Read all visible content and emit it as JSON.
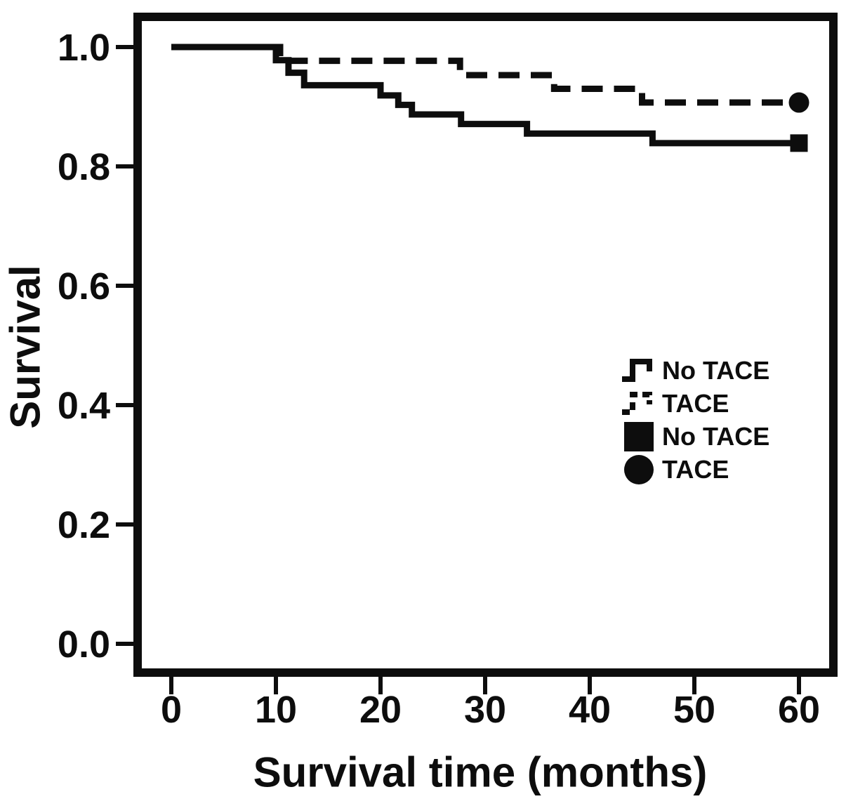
{
  "figure_title": "",
  "chart_data": {
    "type": "line",
    "subtype": "kaplan-meier-step",
    "title": "",
    "xlabel": "Survival time (months)",
    "ylabel": "Survival",
    "xlim": [
      0,
      60
    ],
    "ylim": [
      0.0,
      1.0
    ],
    "x_ticks": [
      "0",
      "10",
      "20",
      "30",
      "40",
      "50",
      "60"
    ],
    "y_ticks": [
      "0.0",
      "0.2",
      "0.4",
      "0.6",
      "0.8",
      "1.0"
    ],
    "grid": false,
    "line_color": "#0d0d0d",
    "series": [
      {
        "name": "No TACE",
        "style": "solid",
        "end_marker": "square",
        "points": [
          [
            0,
            1.0
          ],
          [
            10,
            0.978
          ],
          [
            11.2,
            0.957
          ],
          [
            12.7,
            0.936
          ],
          [
            20,
            0.919
          ],
          [
            21.7,
            0.903
          ],
          [
            23,
            0.887
          ],
          [
            27.7,
            0.871
          ],
          [
            34,
            0.855
          ],
          [
            46,
            0.839
          ],
          [
            60,
            0.839
          ]
        ]
      },
      {
        "name": "TACE",
        "style": "dashed",
        "end_marker": "circle",
        "points": [
          [
            0,
            1.0
          ],
          [
            10.4,
            0.977
          ],
          [
            27.6,
            0.953
          ],
          [
            36.6,
            0.93
          ],
          [
            45,
            0.907
          ],
          [
            60,
            0.907
          ]
        ]
      }
    ],
    "legend": {
      "position": "inside-right",
      "entries": [
        {
          "glyph": "solid-step-line",
          "label": "No TACE"
        },
        {
          "glyph": "dashed-step-line",
          "label": "TACE"
        },
        {
          "glyph": "filled-square",
          "label": "No TACE"
        },
        {
          "glyph": "filled-circle",
          "label": "TACE"
        }
      ]
    }
  }
}
